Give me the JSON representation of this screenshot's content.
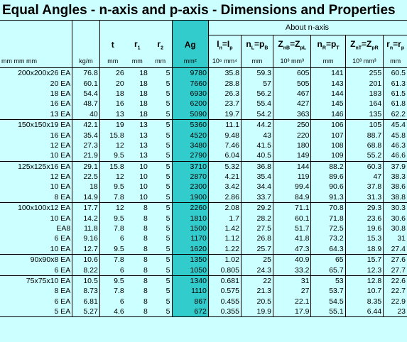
{
  "title": "Equal Angles - n-axis and p-axis - Dimensions and Properties",
  "about_label": "About n-axis",
  "columns": [
    {
      "sym": "",
      "unit": "mm mm    mm"
    },
    {
      "sym": "",
      "unit": "kg/m"
    },
    {
      "sym": "t",
      "unit": "mm"
    },
    {
      "sym": "r1",
      "unit": "mm"
    },
    {
      "sym": "r2",
      "unit": "mm"
    },
    {
      "sym": "Ag",
      "unit": "mm²"
    },
    {
      "sym": "In=Ip",
      "unit": "10⁶ mm⁴"
    },
    {
      "sym": "nL=pB",
      "unit": "mm"
    },
    {
      "sym": "ZnB=ZpL",
      "unit": "10³ mm³"
    },
    {
      "sym": "nR=pT",
      "unit": "mm"
    },
    {
      "sym": "ZnT=ZpR",
      "unit": "10³ mm³"
    },
    {
      "sym": "rn=rp",
      "unit": "mm"
    }
  ],
  "groups": [
    {
      "rows": [
        [
          "200x200x26 EA",
          "76.8",
          "26",
          "18",
          "5",
          "9780",
          "35.8",
          "59.3",
          "605",
          "141",
          "255",
          "60.5"
        ],
        [
          "20 EA",
          "60.1",
          "20",
          "18",
          "5",
          "7660",
          "28.8",
          "57",
          "505",
          "143",
          "201",
          "61.3"
        ],
        [
          "18 EA",
          "54.4",
          "18",
          "18",
          "5",
          "6930",
          "26.3",
          "56.2",
          "467",
          "144",
          "183",
          "61.5"
        ],
        [
          "16 EA",
          "48.7",
          "16",
          "18",
          "5",
          "6200",
          "23.7",
          "55.4",
          "427",
          "145",
          "164",
          "61.8"
        ],
        [
          "13 EA",
          "40",
          "13",
          "18",
          "5",
          "5090",
          "19.7",
          "54.2",
          "363",
          "146",
          "135",
          "62.2"
        ]
      ]
    },
    {
      "rows": [
        [
          "150x150x19 EA",
          "42.1",
          "19",
          "13",
          "5",
          "5360",
          "11.1",
          "44.2",
          "250",
          "106",
          "105",
          "45.4"
        ],
        [
          "16 EA",
          "35.4",
          "15.8",
          "13",
          "5",
          "4520",
          "9.48",
          "43",
          "220",
          "107",
          "88.7",
          "45.8"
        ],
        [
          "12 EA",
          "27.3",
          "12",
          "13",
          "5",
          "3480",
          "7.46",
          "41.5",
          "180",
          "108",
          "68.8",
          "46.3"
        ],
        [
          "10 EA",
          "21.9",
          "9.5",
          "13",
          "5",
          "2790",
          "6.04",
          "40.5",
          "149",
          "109",
          "55.2",
          "46.6"
        ]
      ]
    },
    {
      "rows": [
        [
          "125x125x16 EA",
          "29.1",
          "15.8",
          "10",
          "5",
          "3710",
          "5.32",
          "36.8",
          "144",
          "88.2",
          "60.3",
          "37.9"
        ],
        [
          "12 EA",
          "22.5",
          "12",
          "10",
          "5",
          "2870",
          "4.21",
          "35.4",
          "119",
          "89.6",
          "47",
          "38.3"
        ],
        [
          "10 EA",
          "18",
          "9.5",
          "10",
          "5",
          "2300",
          "3.42",
          "34.4",
          "99.4",
          "90.6",
          "37.8",
          "38.6"
        ],
        [
          "8 EA",
          "14.9",
          "7.8",
          "10",
          "5",
          "1900",
          "2.86",
          "33.7",
          "84.9",
          "91.3",
          "31.3",
          "38.8"
        ]
      ]
    },
    {
      "rows": [
        [
          "100x100x12 EA",
          "17.7",
          "12",
          "8",
          "5",
          "2260",
          "2.08",
          "29.2",
          "71.1",
          "70.8",
          "29.3",
          "30.3"
        ],
        [
          "10 EA",
          "14.2",
          "9.5",
          "8",
          "5",
          "1810",
          "1.7",
          "28.2",
          "60.1",
          "71.8",
          "23.6",
          "30.6"
        ],
        [
          "EA8",
          "11.8",
          "7.8",
          "8",
          "5",
          "1500",
          "1.42",
          "27.5",
          "51.7",
          "72.5",
          "19.6",
          "30.8"
        ],
        [
          "6 EA",
          "9.16",
          "6",
          "8",
          "5",
          "1170",
          "1.12",
          "26.8",
          "41.8",
          "73.2",
          "15.3",
          "31"
        ],
        [
          "10 EA",
          "12.7",
          "9.5",
          "8",
          "5",
          "1620",
          "1.22",
          "25.7",
          "47.3",
          "64.3",
          "18.9",
          "27.4"
        ]
      ]
    },
    {
      "rows": [
        [
          "90x90x8 EA",
          "10.6",
          "7.8",
          "8",
          "5",
          "1350",
          "1.02",
          "25",
          "40.9",
          "65",
          "15.7",
          "27.6"
        ],
        [
          "6 EA",
          "8.22",
          "6",
          "8",
          "5",
          "1050",
          "0.805",
          "24.3",
          "33.2",
          "65.7",
          "12.3",
          "27.7"
        ]
      ]
    },
    {
      "rows": [
        [
          "75x75x10 EA",
          "10.5",
          "9.5",
          "8",
          "5",
          "1340",
          "0.681",
          "22",
          "31",
          "53",
          "12.8",
          "22.6"
        ],
        [
          "8 EA",
          "8.73",
          "7.8",
          "8",
          "5",
          "1110",
          "0.575",
          "21.3",
          "27",
          "53.7",
          "10.7",
          "22.7"
        ],
        [
          "6 EA",
          "6.81",
          "6",
          "8",
          "5",
          "867",
          "0.455",
          "20.5",
          "22.1",
          "54.5",
          "8.35",
          "22.9"
        ],
        [
          "5 EA",
          "5.27",
          "4.6",
          "8",
          "5",
          "672",
          "0.355",
          "19.9",
          "17.9",
          "55.1",
          "6.44",
          "23"
        ]
      ]
    }
  ]
}
